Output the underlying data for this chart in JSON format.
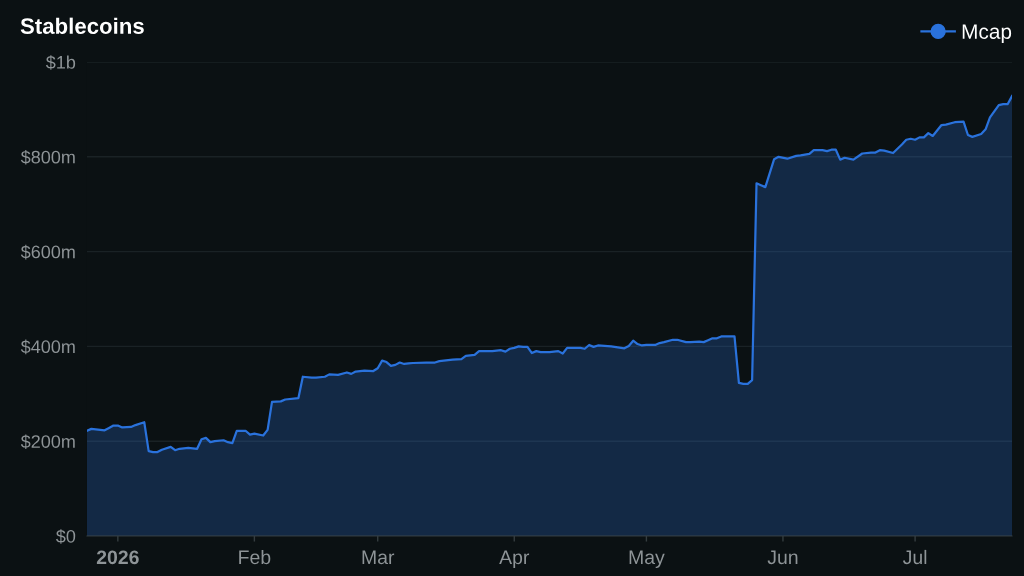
{
  "chart_data": {
    "type": "area",
    "title": "Stablecoins",
    "x": [
      "2025-12-25",
      "2025-12-26",
      "2025-12-27",
      "2025-12-29",
      "2025-12-30",
      "2025-12-31",
      "2026-01-01",
      "2026-01-02",
      "2026-01-04",
      "2026-01-05",
      "2026-01-07",
      "2026-01-08",
      "2026-01-09",
      "2026-01-10",
      "2026-01-11",
      "2026-01-13",
      "2026-01-14",
      "2026-01-15",
      "2026-01-17",
      "2026-01-19",
      "2026-01-20",
      "2026-01-21",
      "2026-01-22",
      "2026-01-23",
      "2026-01-25",
      "2026-01-26",
      "2026-01-27",
      "2026-01-28",
      "2026-01-30",
      "2026-01-31",
      "2026-02-01",
      "2026-02-03",
      "2026-02-04",
      "2026-02-05",
      "2026-02-07",
      "2026-02-08",
      "2026-02-11",
      "2026-02-12",
      "2026-02-14",
      "2026-02-15",
      "2026-02-17",
      "2026-02-18",
      "2026-02-20",
      "2026-02-22",
      "2026-02-23",
      "2026-02-24",
      "2026-02-26",
      "2026-02-28",
      "2026-03-01",
      "2026-03-02",
      "2026-03-03",
      "2026-03-04",
      "2026-03-05",
      "2026-03-06",
      "2026-03-07",
      "2026-03-08",
      "2026-03-09",
      "2026-03-12",
      "2026-03-13",
      "2026-03-14",
      "2026-03-15",
      "2026-03-17",
      "2026-03-18",
      "2026-03-20",
      "2026-03-21",
      "2026-03-23",
      "2026-03-24",
      "2026-03-26",
      "2026-03-27",
      "2026-03-29",
      "2026-03-30",
      "2026-03-31",
      "2026-04-01",
      "2026-04-02",
      "2026-04-03",
      "2026-04-04",
      "2026-04-05",
      "2026-04-06",
      "2026-04-07",
      "2026-04-09",
      "2026-04-11",
      "2026-04-12",
      "2026-04-13",
      "2026-04-15",
      "2026-04-16",
      "2026-04-17",
      "2026-04-18",
      "2026-04-19",
      "2026-04-20",
      "2026-04-23",
      "2026-04-26",
      "2026-04-27",
      "2026-04-28",
      "2026-04-29",
      "2026-04-30",
      "2026-05-01",
      "2026-05-03",
      "2026-05-04",
      "2026-05-05",
      "2026-05-07",
      "2026-05-08",
      "2026-05-10",
      "2026-05-11",
      "2026-05-13",
      "2026-05-14",
      "2026-05-15",
      "2026-05-16",
      "2026-05-17",
      "2026-05-18",
      "2026-05-19",
      "2026-05-21",
      "2026-05-22",
      "2026-05-23",
      "2026-05-24",
      "2026-05-25",
      "2026-05-26",
      "2026-05-27",
      "2026-05-28",
      "2026-05-30",
      "2026-05-31",
      "2026-06-02",
      "2026-06-04",
      "2026-06-05",
      "2026-06-07",
      "2026-06-08",
      "2026-06-10",
      "2026-06-11",
      "2026-06-12",
      "2026-06-13",
      "2026-06-14",
      "2026-06-15",
      "2026-06-17",
      "2026-06-19",
      "2026-06-21",
      "2026-06-22",
      "2026-06-23",
      "2026-06-24",
      "2026-06-26",
      "2026-06-28",
      "2026-06-29",
      "2026-06-30",
      "2026-07-01",
      "2026-07-02",
      "2026-07-03",
      "2026-07-04",
      "2026-07-05",
      "2026-07-07",
      "2026-07-08",
      "2026-07-10",
      "2026-07-12",
      "2026-07-13",
      "2026-07-14",
      "2026-07-16",
      "2026-07-17",
      "2026-07-18",
      "2026-07-20",
      "2026-07-21",
      "2026-07-22",
      "2026-07-23"
    ],
    "series": [
      {
        "name": "Mcap",
        "color": "#2a72dc",
        "values": [
          222000000.0,
          226000000.0,
          225000000.0,
          223000000.0,
          228000000.0,
          233000000.0,
          233000000.0,
          229000000.0,
          230000000.0,
          234000000.0,
          240000000.0,
          179000000.0,
          177000000.0,
          177000000.0,
          182000000.0,
          188000000.0,
          181000000.0,
          184000000.0,
          186000000.0,
          184000000.0,
          204000000.0,
          207000000.0,
          198000000.0,
          200000000.0,
          202000000.0,
          198000000.0,
          196000000.0,
          222000000.0,
          222000000.0,
          214000000.0,
          216000000.0,
          212000000.0,
          224000000.0,
          283000000.0,
          284000000.0,
          288000000.0,
          291000000.0,
          336000000.0,
          334000000.0,
          334000000.0,
          336000000.0,
          341000000.0,
          340000000.0,
          345000000.0,
          342000000.0,
          347000000.0,
          349000000.0,
          348000000.0,
          354000000.0,
          370000000.0,
          367000000.0,
          359000000.0,
          361000000.0,
          366000000.0,
          363000000.0,
          364000000.0,
          365000000.0,
          366000000.0,
          366000000.0,
          366000000.0,
          369000000.0,
          371000000.0,
          372000000.0,
          373000000.0,
          380000000.0,
          382000000.0,
          390000000.0,
          390000000.0,
          390000000.0,
          392000000.0,
          389000000.0,
          395000000.0,
          397000000.0,
          400000000.0,
          399000000.0,
          399000000.0,
          386000000.0,
          390000000.0,
          388000000.0,
          388000000.0,
          390000000.0,
          385000000.0,
          397000000.0,
          397000000.0,
          397000000.0,
          395000000.0,
          403000000.0,
          399000000.0,
          402000000.0,
          400000000.0,
          396000000.0,
          401000000.0,
          412000000.0,
          405000000.0,
          402000000.0,
          403000000.0,
          403000000.0,
          407000000.0,
          409000000.0,
          414000000.0,
          414000000.0,
          409000000.0,
          409000000.0,
          410000000.0,
          409000000.0,
          413000000.0,
          417000000.0,
          417000000.0,
          421000000.0,
          421000000.0,
          421000000.0,
          323000000.0,
          321000000.0,
          321000000.0,
          329000000.0,
          744000000.0,
          740000000.0,
          736000000.0,
          795000000.0,
          800000000.0,
          796000000.0,
          802000000.0,
          803000000.0,
          806000000.0,
          814000000.0,
          814000000.0,
          812000000.0,
          815000000.0,
          815000000.0,
          794000000.0,
          798000000.0,
          794000000.0,
          807000000.0,
          809000000.0,
          809000000.0,
          814000000.0,
          813000000.0,
          808000000.0,
          826000000.0,
          836000000.0,
          838000000.0,
          836000000.0,
          841000000.0,
          841000000.0,
          850000000.0,
          844000000.0,
          867000000.0,
          868000000.0,
          873000000.0,
          874000000.0,
          846000000.0,
          842000000.0,
          848000000.0,
          858000000.0,
          883000000.0,
          909000000.0,
          911000000.0,
          911000000.0,
          928000000.0
        ]
      }
    ],
    "xlim": [
      "2025-12-25",
      "2026-07-23"
    ],
    "xticks": [
      {
        "value": "2026-01-01",
        "label": "2026"
      },
      {
        "value": "2026-02-01",
        "label": "Feb"
      },
      {
        "value": "2026-03-01",
        "label": "Mar"
      },
      {
        "value": "2026-04-01",
        "label": "Apr"
      },
      {
        "value": "2026-05-01",
        "label": "May"
      },
      {
        "value": "2026-06-01",
        "label": "Jun"
      },
      {
        "value": "2026-07-01",
        "label": "Jul"
      }
    ],
    "ylim": [
      0,
      1000000000.0
    ],
    "yticks": [
      {
        "value": 0,
        "label": "$0"
      },
      {
        "value": 200000000.0,
        "label": "$200m"
      },
      {
        "value": 400000000.0,
        "label": "$400m"
      },
      {
        "value": 600000000.0,
        "label": "$600m"
      },
      {
        "value": 800000000.0,
        "label": "$800m"
      },
      {
        "value": 1000000000.0,
        "label": "$1b"
      }
    ],
    "grid": "y",
    "legend": "top right"
  }
}
